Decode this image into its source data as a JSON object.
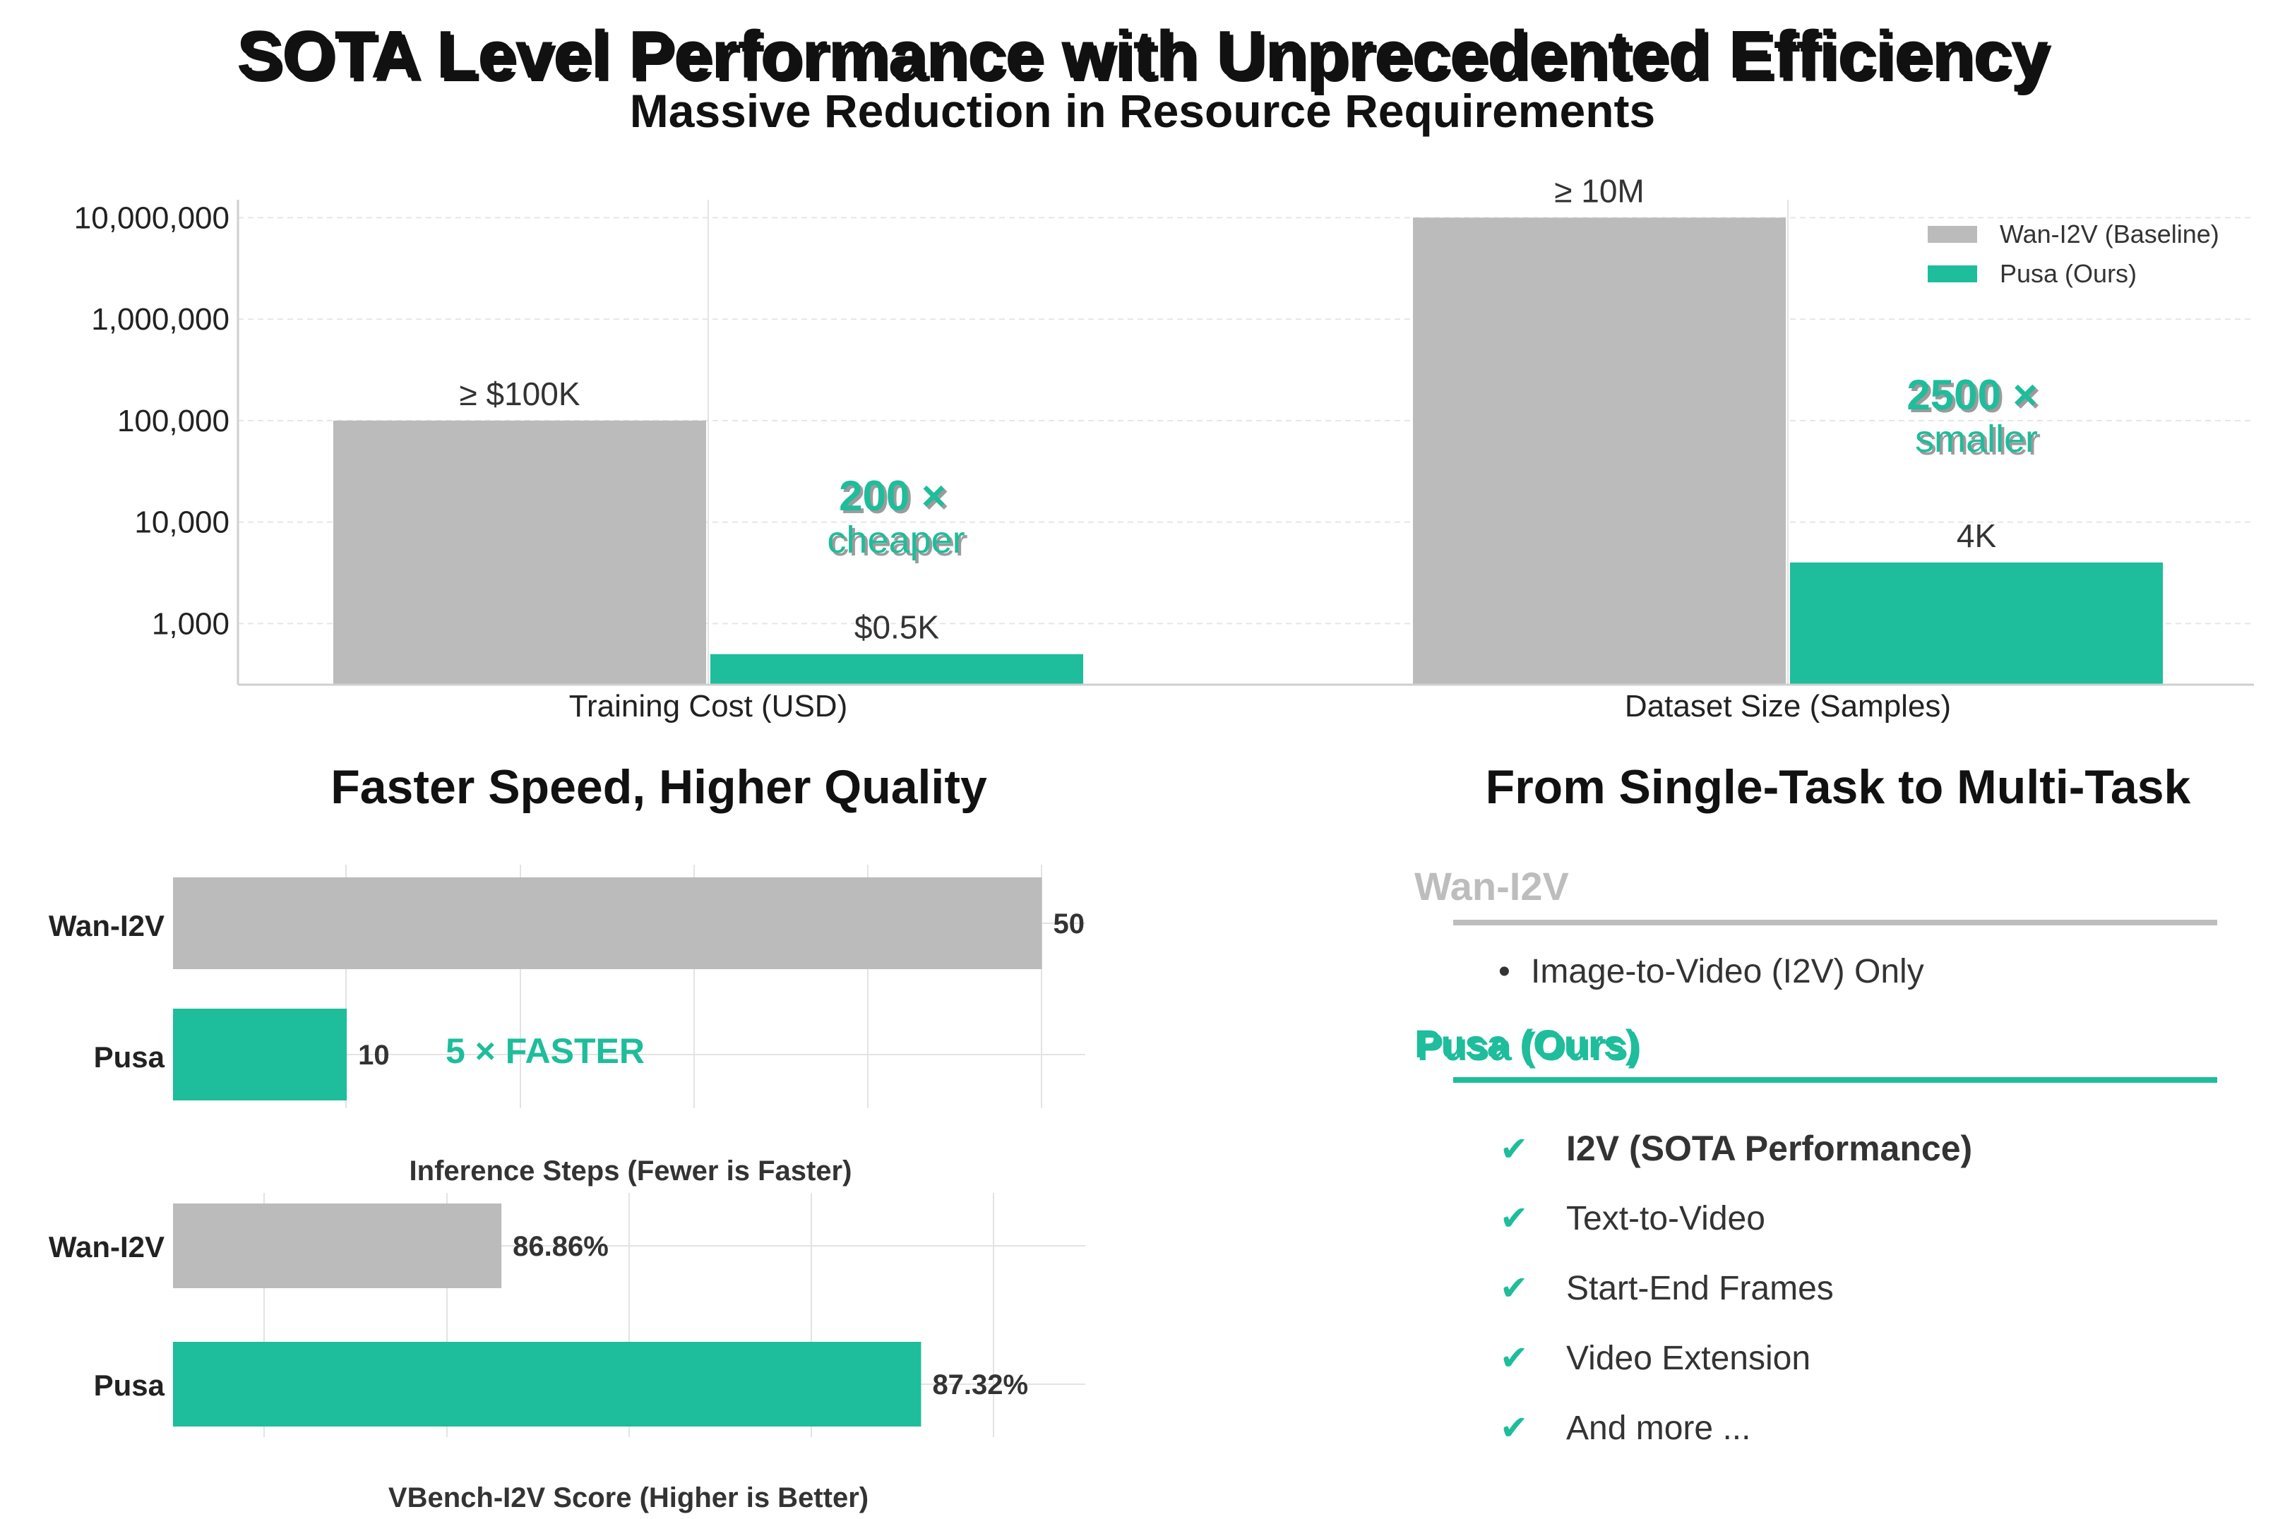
{
  "title": "SOTA Level Performance with Unprecedented Efficiency",
  "subtitle": "Massive Reduction in Resource Requirements",
  "colors": {
    "baseline": "#bbbbbb",
    "ours": "#1ebd9b"
  },
  "chart_data": [
    {
      "type": "bar",
      "scale": "log",
      "categories": [
        "Training Cost (USD)",
        "Dataset Size (Samples)"
      ],
      "series": [
        {
          "name": "Wan-I2V (Baseline)",
          "values": [
            100000,
            10000000
          ]
        },
        {
          "name": "Pusa (Ours)",
          "values": [
            500,
            4000
          ]
        }
      ],
      "value_labels": [
        [
          "≥ $100K",
          "≥ 10M"
        ],
        [
          "$0.5K",
          "4K"
        ]
      ],
      "ticks": [
        1000,
        10000,
        100000,
        1000000,
        10000000
      ],
      "tick_labels": [
        "1,000",
        "10,000",
        "100,000",
        "1,000,000",
        "10,000,000"
      ],
      "ylim": [
        250,
        15000000
      ],
      "legend": [
        "Wan-I2V (Baseline)",
        "Pusa (Ours)"
      ],
      "legend_position": "top-right",
      "annotations": [
        {
          "main": "200 ×",
          "sub": "cheaper"
        },
        {
          "main": "2500 ×",
          "sub": "smaller"
        }
      ]
    },
    {
      "type": "bar",
      "orientation": "horizontal",
      "title": "Faster Speed, Higher Quality",
      "categories": [
        "Wan-I2V",
        "Pusa"
      ],
      "values": [
        50,
        10
      ],
      "value_labels": [
        "50",
        "10"
      ],
      "xlim": [
        0,
        52.5
      ],
      "xlabel": "Inference Steps (Fewer is Faster)",
      "annotation": "5 ×  FASTER"
    },
    {
      "type": "bar",
      "orientation": "horizontal",
      "categories": [
        "Wan-I2V",
        "Pusa"
      ],
      "values": [
        86.86,
        87.32
      ],
      "value_labels": [
        "86.86%",
        "87.32%"
      ],
      "xlim": [
        86.5,
        87.5
      ],
      "xlabel": "VBench-I2V Score (Higher is Better)"
    }
  ],
  "tasks": {
    "title": "From Single-Task to Multi-Task",
    "baseline": {
      "name": "Wan-I2V",
      "bullet": "•",
      "items": [
        "Image-to-Video (I2V) Only"
      ]
    },
    "ours": {
      "name": "Pusa (Ours)",
      "check": "✔",
      "items": [
        "I2V (SOTA Performance)",
        "Text-to-Video",
        "Start-End Frames",
        "Video Extension",
        "And more ..."
      ]
    }
  }
}
